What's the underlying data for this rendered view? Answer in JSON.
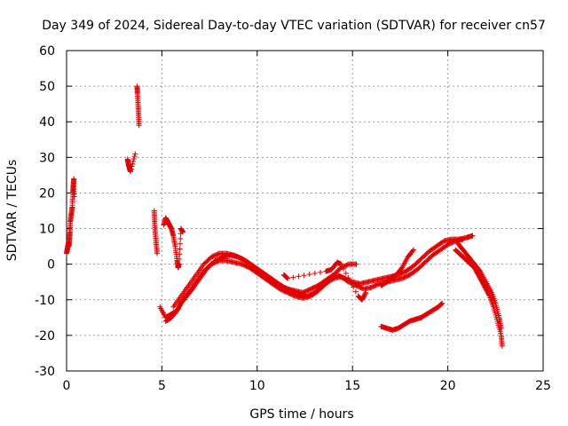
{
  "chart_data": {
    "type": "scatter",
    "title": "Day 349 of 2024, Sidereal Day-to-day VTEC variation (SDTVAR) for receiver cn57",
    "xlabel": "GPS time / hours",
    "ylabel": "SDTVAR / TECUs",
    "xlim": [
      0,
      25
    ],
    "ylim": [
      -30,
      60
    ],
    "xticks": [
      0,
      5,
      10,
      15,
      20,
      25
    ],
    "yticks": [
      -30,
      -20,
      -10,
      0,
      10,
      20,
      30,
      40,
      50,
      60
    ],
    "grid": true,
    "marker": "plus",
    "color": "#e00000",
    "segments": [
      {
        "name": "start",
        "points": [
          [
            0.0,
            3
          ],
          [
            0.05,
            4.5
          ],
          [
            0.1,
            6
          ],
          [
            0.12,
            5
          ],
          [
            0.15,
            7
          ],
          [
            0.18,
            9
          ],
          [
            0.2,
            12
          ],
          [
            0.25,
            14
          ],
          [
            0.3,
            16
          ],
          [
            0.33,
            20
          ],
          [
            0.35,
            22
          ],
          [
            0.38,
            24
          ],
          [
            0.4,
            19
          ]
        ]
      },
      {
        "name": "arc-a",
        "points": [
          [
            3.2,
            29.5
          ],
          [
            3.25,
            28
          ],
          [
            3.3,
            27
          ],
          [
            3.35,
            26
          ],
          [
            3.6,
            31
          ]
        ]
      },
      {
        "name": "arc-b",
        "points": [
          [
            3.7,
            50
          ],
          [
            3.72,
            48
          ],
          [
            3.75,
            45
          ],
          [
            3.78,
            42
          ],
          [
            3.8,
            39
          ]
        ]
      },
      {
        "name": "arc-c",
        "points": [
          [
            4.6,
            15
          ],
          [
            4.62,
            12
          ],
          [
            4.65,
            9
          ],
          [
            4.7,
            6
          ],
          [
            4.75,
            3
          ]
        ]
      },
      {
        "name": "arc-d",
        "points": [
          [
            5.1,
            11
          ],
          [
            5.2,
            13
          ],
          [
            5.3,
            12
          ],
          [
            5.4,
            11
          ],
          [
            5.5,
            10
          ],
          [
            5.6,
            8
          ],
          [
            5.7,
            5
          ],
          [
            5.8,
            1
          ],
          [
            5.85,
            -1
          ],
          [
            5.9,
            0
          ],
          [
            6.0,
            10
          ],
          [
            6.1,
            9
          ]
        ]
      },
      {
        "name": "main-1",
        "points": [
          [
            4.9,
            -12
          ],
          [
            5.2,
            -15
          ],
          [
            5.5,
            -14
          ],
          [
            5.8,
            -13
          ],
          [
            6.0,
            -11
          ],
          [
            6.3,
            -9
          ],
          [
            6.6,
            -7
          ],
          [
            7.0,
            -4
          ],
          [
            7.4,
            -1
          ],
          [
            7.8,
            1
          ],
          [
            8.2,
            2
          ],
          [
            8.6,
            2.5
          ],
          [
            9.0,
            2
          ],
          [
            9.4,
            1
          ],
          [
            9.8,
            -0.5
          ],
          [
            10.2,
            -2
          ],
          [
            10.6,
            -3.5
          ],
          [
            11.0,
            -5
          ],
          [
            11.4,
            -6.5
          ],
          [
            11.8,
            -7.5
          ],
          [
            12.2,
            -8.5
          ],
          [
            12.6,
            -9
          ],
          [
            13.0,
            -8
          ],
          [
            13.4,
            -6
          ],
          [
            13.8,
            -4
          ],
          [
            14.2,
            -3
          ],
          [
            14.6,
            -4
          ],
          [
            15.0,
            -5
          ],
          [
            15.4,
            -5.5
          ],
          [
            15.8,
            -5
          ],
          [
            16.2,
            -4.5
          ],
          [
            16.6,
            -4
          ],
          [
            17.0,
            -3.5
          ],
          [
            17.4,
            -3
          ],
          [
            17.8,
            -2
          ],
          [
            18.2,
            -0.5
          ],
          [
            18.6,
            1.5
          ],
          [
            19.0,
            3.5
          ],
          [
            19.4,
            5
          ],
          [
            19.8,
            6.5
          ],
          [
            20.2,
            7
          ],
          [
            20.6,
            7
          ],
          [
            21.0,
            7.5
          ],
          [
            21.3,
            8
          ]
        ]
      },
      {
        "name": "main-2",
        "points": [
          [
            5.2,
            -16
          ],
          [
            5.5,
            -15
          ],
          [
            5.8,
            -13
          ],
          [
            6.1,
            -10
          ],
          [
            6.4,
            -8
          ],
          [
            6.8,
            -5
          ],
          [
            7.2,
            -2
          ],
          [
            7.6,
            0
          ],
          [
            8.0,
            1
          ],
          [
            8.4,
            1
          ],
          [
            8.8,
            0.5
          ],
          [
            9.2,
            0
          ],
          [
            9.6,
            -1
          ],
          [
            10.0,
            -2.5
          ],
          [
            10.4,
            -4
          ],
          [
            10.8,
            -5.5
          ],
          [
            11.2,
            -7
          ],
          [
            11.6,
            -8
          ],
          [
            12.0,
            -9
          ],
          [
            12.4,
            -9.5
          ],
          [
            12.8,
            -9
          ],
          [
            13.2,
            -7.5
          ],
          [
            13.6,
            -5.5
          ],
          [
            14.0,
            -4
          ],
          [
            14.4,
            -3.5
          ],
          [
            14.8,
            -5
          ],
          [
            15.2,
            -6
          ],
          [
            15.6,
            -7
          ],
          [
            16.0,
            -6.5
          ],
          [
            16.4,
            -5.5
          ],
          [
            16.8,
            -5
          ],
          [
            17.2,
            -4.5
          ],
          [
            17.6,
            -4
          ],
          [
            18.0,
            -3
          ],
          [
            18.4,
            -1.5
          ],
          [
            18.8,
            0.5
          ],
          [
            19.2,
            2.5
          ],
          [
            19.6,
            4
          ],
          [
            20.0,
            5.5
          ],
          [
            20.4,
            6.5
          ],
          [
            20.8,
            7
          ]
        ]
      },
      {
        "name": "main-3",
        "points": [
          [
            5.6,
            -12
          ],
          [
            6.0,
            -9
          ],
          [
            6.4,
            -6
          ],
          [
            6.8,
            -3
          ],
          [
            7.2,
            0
          ],
          [
            7.6,
            2
          ],
          [
            8.0,
            3
          ],
          [
            8.4,
            3
          ],
          [
            8.8,
            2.5
          ],
          [
            9.2,
            1.5
          ],
          [
            9.6,
            0
          ],
          [
            10.0,
            -1.5
          ],
          [
            10.4,
            -3
          ],
          [
            10.8,
            -4.5
          ],
          [
            11.2,
            -6
          ],
          [
            11.6,
            -7
          ],
          [
            12.0,
            -7.5
          ],
          [
            12.4,
            -8
          ],
          [
            12.8,
            -7
          ],
          [
            13.2,
            -6
          ],
          [
            13.6,
            -4.5
          ],
          [
            14.0,
            -3
          ],
          [
            14.4,
            -1
          ],
          [
            14.8,
            0
          ],
          [
            15.2,
            0
          ]
        ]
      },
      {
        "name": "mid-dips",
        "points": [
          [
            11.4,
            -3
          ],
          [
            11.6,
            -4
          ],
          [
            13.6,
            -2
          ],
          [
            13.9,
            -1.5
          ],
          [
            14.2,
            0.5
          ],
          [
            14.4,
            0
          ],
          [
            15.3,
            -9
          ],
          [
            15.5,
            -10
          ],
          [
            15.7,
            -8
          ]
        ]
      },
      {
        "name": "peak-18",
        "points": [
          [
            16.5,
            -6
          ],
          [
            16.8,
            -5
          ],
          [
            17.0,
            -4
          ],
          [
            17.3,
            -3
          ],
          [
            17.6,
            -1
          ],
          [
            17.9,
            2
          ],
          [
            18.2,
            4
          ]
        ]
      },
      {
        "name": "lower-arc",
        "points": [
          [
            16.5,
            -17.5
          ],
          [
            16.8,
            -18
          ],
          [
            17.1,
            -18.5
          ],
          [
            17.4,
            -18
          ],
          [
            17.7,
            -17
          ],
          [
            18.0,
            -16
          ],
          [
            18.3,
            -15.5
          ],
          [
            18.6,
            -15
          ],
          [
            18.9,
            -14
          ],
          [
            19.2,
            -13
          ],
          [
            19.5,
            -12
          ],
          [
            19.7,
            -11
          ]
        ]
      },
      {
        "name": "end-descent",
        "points": [
          [
            20.4,
            4
          ],
          [
            20.6,
            3
          ],
          [
            20.8,
            2
          ],
          [
            21.0,
            1
          ],
          [
            21.2,
            0
          ],
          [
            21.4,
            -1
          ],
          [
            21.6,
            -3
          ],
          [
            21.8,
            -5
          ],
          [
            22.0,
            -7
          ],
          [
            22.2,
            -9
          ],
          [
            22.4,
            -12
          ],
          [
            22.6,
            -16
          ],
          [
            22.8,
            -20
          ],
          [
            22.85,
            -23
          ]
        ]
      },
      {
        "name": "end-descent-2",
        "points": [
          [
            20.5,
            6
          ],
          [
            20.8,
            4
          ],
          [
            21.1,
            2
          ],
          [
            21.4,
            0
          ],
          [
            21.7,
            -2
          ],
          [
            22.0,
            -5
          ],
          [
            22.3,
            -8
          ],
          [
            22.5,
            -11
          ],
          [
            22.7,
            -15
          ],
          [
            22.8,
            -18
          ]
        ]
      }
    ]
  }
}
